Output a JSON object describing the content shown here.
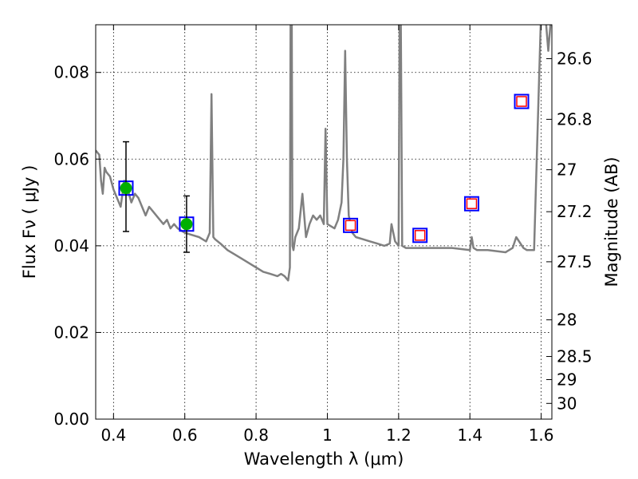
{
  "chart_data": {
    "type": "line",
    "title": "",
    "xlabel": "Wavelength  λ (μm)",
    "ylabel": "Flux  Fν  ( μJy )",
    "y2label": "Magnitude (AB)",
    "xlim": [
      0.35,
      1.63
    ],
    "ylim": [
      0.0,
      0.091
    ],
    "grid": true,
    "x_ticks": [
      0.4,
      0.6,
      0.8,
      1.0,
      1.2,
      1.4,
      1.6
    ],
    "x_tick_labels": [
      "0.4",
      "0.6",
      "0.8",
      "1",
      "1.2",
      "1.4",
      "1.6"
    ],
    "y_ticks": [
      0.0,
      0.02,
      0.04,
      0.06,
      0.08
    ],
    "y_tick_labels": [
      "0.00",
      "0.02",
      "0.04",
      "0.06",
      "0.08"
    ],
    "mag_ticks": [
      26.6,
      26.8,
      27.0,
      27.2,
      27.5,
      28.0,
      28.5,
      29.0,
      30.0
    ],
    "mag_tick_labels": [
      "26.6",
      "26.8",
      "27",
      "27.2",
      "27.5",
      "28",
      "28.5",
      "29",
      "30"
    ],
    "colors": {
      "sed": "#808080",
      "observed": "#00b000",
      "model_box": "#0000ff",
      "upper_box": "#ff0000",
      "errorbar": "#000000"
    },
    "series": [
      {
        "type": "line",
        "x": [
          0.35,
          0.36,
          0.365,
          0.37,
          0.375,
          0.38,
          0.39,
          0.4,
          0.41,
          0.42,
          0.43,
          0.44,
          0.45,
          0.46,
          0.47,
          0.48,
          0.49,
          0.5,
          0.51,
          0.52,
          0.53,
          0.54,
          0.55,
          0.56,
          0.57,
          0.58,
          0.6,
          0.62,
          0.64,
          0.66,
          0.67,
          0.675,
          0.68,
          0.685,
          0.7,
          0.72,
          0.74,
          0.76,
          0.78,
          0.8,
          0.82,
          0.84,
          0.86,
          0.87,
          0.88,
          0.89,
          0.895,
          0.897,
          0.9,
          0.902,
          0.905,
          0.91,
          0.92,
          0.93,
          0.94,
          0.95,
          0.96,
          0.97,
          0.98,
          0.99,
          0.995,
          1.0,
          1.02,
          1.03,
          1.04,
          1.045,
          1.05,
          1.055,
          1.06,
          1.07,
          1.08,
          1.1,
          1.12,
          1.14,
          1.16,
          1.175,
          1.18,
          1.19,
          1.2,
          1.203,
          1.206,
          1.21,
          1.22,
          1.25,
          1.3,
          1.35,
          1.4,
          1.405,
          1.41,
          1.42,
          1.45,
          1.5,
          1.52,
          1.53,
          1.55,
          1.56,
          1.57,
          1.58,
          1.6,
          1.61,
          1.62,
          1.63
        ],
        "y": [
          0.062,
          0.061,
          0.055,
          0.052,
          0.058,
          0.057,
          0.056,
          0.053,
          0.051,
          0.049,
          0.055,
          0.053,
          0.05,
          0.052,
          0.051,
          0.049,
          0.047,
          0.049,
          0.048,
          0.047,
          0.046,
          0.045,
          0.046,
          0.044,
          0.045,
          0.044,
          0.043,
          0.0425,
          0.042,
          0.041,
          0.043,
          0.075,
          0.042,
          0.0415,
          0.0405,
          0.039,
          0.038,
          0.037,
          0.036,
          0.035,
          0.034,
          0.0335,
          0.033,
          0.0335,
          0.033,
          0.032,
          0.035,
          0.095,
          0.095,
          0.04,
          0.039,
          0.042,
          0.044,
          0.052,
          0.042,
          0.045,
          0.047,
          0.046,
          0.047,
          0.045,
          0.067,
          0.045,
          0.044,
          0.046,
          0.05,
          0.06,
          0.085,
          0.06,
          0.047,
          0.043,
          0.042,
          0.0415,
          0.041,
          0.0405,
          0.04,
          0.0405,
          0.045,
          0.041,
          0.04,
          0.095,
          0.095,
          0.04,
          0.0395,
          0.0395,
          0.0395,
          0.0395,
          0.039,
          0.042,
          0.0395,
          0.039,
          0.039,
          0.0385,
          0.0395,
          0.042,
          0.0395,
          0.039,
          0.039,
          0.039,
          0.095,
          0.095,
          0.085,
          0.095
        ]
      },
      {
        "type": "scatter-errorbar",
        "x": [
          0.435,
          0.605
        ],
        "y": [
          0.0533,
          0.045
        ],
        "yerr_low": [
          0.0433,
          0.0385
        ],
        "yerr_high": [
          0.064,
          0.0515
        ]
      },
      {
        "type": "scatter-box",
        "x": [
          0.435,
          0.605,
          1.065,
          1.26,
          1.405,
          1.545
        ],
        "y": [
          0.0533,
          0.045,
          0.0447,
          0.0424,
          0.0497,
          0.0733
        ]
      },
      {
        "type": "scatter-box-open",
        "x": [
          1.065,
          1.26,
          1.405,
          1.545
        ],
        "y": [
          0.0447,
          0.0424,
          0.0497,
          0.0733
        ]
      }
    ]
  }
}
